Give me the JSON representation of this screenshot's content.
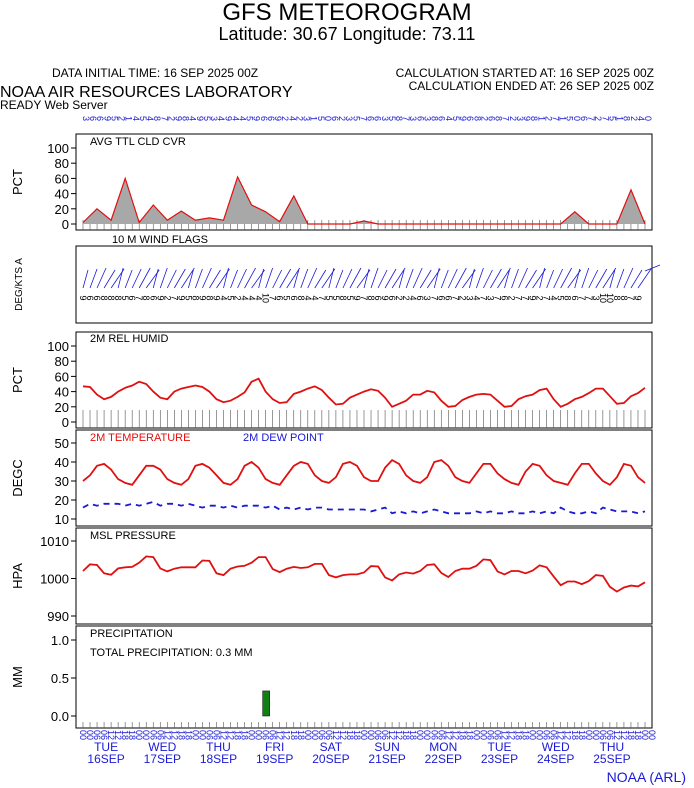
{
  "header": {
    "title": "GFS METEOROGRAM",
    "subtitle": "Latitude: 30.67 Longitude:  73.11",
    "initial_time": "DATA INITIAL TIME: 16 SEP 2025 00Z",
    "calc_started": "CALCULATION STARTED AT: 16 SEP 2025 00Z",
    "calc_ended": "CALCULATION ENDED AT: 26 SEP 2025 00Z",
    "lab": "NOAA AIR RESOURCES LABORATORY",
    "server": "READY Web Server",
    "credit": "NOAA (ARL)"
  },
  "colors": {
    "red": "#e01010",
    "blue": "#1a1ad6",
    "green": "#108010",
    "gray": "#a8a8a8"
  },
  "chart_data": [
    {
      "type": "area",
      "label": "AVG TTL CLD CVR",
      "ylabel": "PCT",
      "ylim": [
        0,
        100
      ],
      "yticks": [
        "0",
        "20",
        "40",
        "60",
        "80",
        "100"
      ],
      "x_hours": [
        0,
        6,
        12,
        18,
        24,
        30,
        36,
        42,
        48,
        54,
        60,
        66,
        72,
        78,
        84,
        90,
        96,
        102,
        108,
        114,
        120,
        126,
        132,
        138,
        144,
        150,
        156,
        162,
        168,
        174,
        180,
        186,
        192,
        198,
        204,
        210,
        216,
        222,
        228,
        234,
        240
      ],
      "values": [
        2,
        20,
        5,
        60,
        2,
        25,
        5,
        17,
        5,
        8,
        5,
        62,
        25,
        16,
        3,
        37,
        0,
        0,
        0,
        0,
        4,
        0,
        0,
        0,
        0,
        0,
        0,
        0,
        0,
        0,
        0,
        0,
        0,
        0,
        0,
        16,
        0,
        0,
        0,
        45,
        0
      ]
    },
    {
      "type": "wind_flags",
      "label": "10 M  WIND FLAGS",
      "ylabel": "DEG/KTS  A",
      "top_labels": [
        "3",
        "6",
        "6",
        "9",
        "5",
        "2",
        "1",
        "4",
        "5",
        "4",
        "8",
        "7",
        "2",
        "9",
        "8",
        "4",
        "9",
        "5",
        "3",
        "4",
        "9",
        "4",
        "4",
        "5",
        "9",
        "6",
        "6",
        "9",
        "2",
        "4",
        "2",
        "3",
        "1",
        "5",
        "0",
        "6",
        "2",
        "3",
        "5",
        "7",
        "6",
        "6",
        "3",
        "5",
        "8",
        "7",
        "3",
        "6",
        "3",
        "8",
        "6",
        "4",
        "5",
        "9",
        "6",
        "8",
        "2",
        "6",
        "8",
        "7",
        "2",
        "3",
        "9",
        "8",
        "1",
        "2",
        "7",
        "1",
        "5",
        "0",
        "6",
        "7",
        "2",
        "7",
        "5",
        "1",
        "8",
        "2",
        "4",
        "0"
      ],
      "speed_labels": [
        "9",
        "6",
        "6",
        "8",
        "8",
        "8",
        "5",
        "6",
        "7",
        "8",
        "6",
        "9",
        "2",
        "7",
        "9",
        "5",
        "8",
        "9",
        "8",
        "9",
        "4",
        "5",
        "2",
        "4",
        "4",
        "4",
        "10",
        "7",
        "6",
        "5",
        "6",
        "8",
        "4",
        "4",
        "7",
        "5",
        "5",
        "8",
        "5",
        "9",
        "7",
        "8",
        "6",
        "9",
        "6",
        "2",
        "2",
        "4",
        "6",
        "3",
        "7",
        "6",
        "6",
        "7",
        "2",
        "3",
        "4",
        "7",
        "3",
        "7",
        "6",
        "2",
        "7",
        "7",
        "9",
        "2",
        "7",
        "4",
        "5",
        "8",
        "6",
        "7",
        "7",
        "3",
        "10",
        "10",
        "8",
        "8",
        "7",
        "9"
      ]
    },
    {
      "type": "line",
      "label": "2M REL HUMID",
      "ylabel": "PCT",
      "ylim": [
        0,
        100
      ],
      "yticks": [
        "0",
        "20",
        "40",
        "60",
        "80",
        "100"
      ],
      "x_hours": [
        0,
        3,
        6,
        9,
        12,
        15,
        18,
        21,
        24,
        27,
        30,
        33,
        36,
        39,
        42,
        45,
        48,
        51,
        54,
        57,
        60,
        63,
        66,
        69,
        72,
        75,
        78,
        81,
        84,
        87,
        90,
        93,
        96,
        99,
        102,
        105,
        108,
        111,
        114,
        117,
        120,
        123,
        126,
        129,
        132,
        135,
        138,
        141,
        144,
        147,
        150,
        153,
        156,
        159,
        162,
        165,
        168,
        171,
        174,
        177,
        180,
        183,
        186,
        189,
        192,
        195,
        198,
        201,
        204,
        207,
        210,
        213,
        216,
        219,
        222,
        225,
        228,
        231,
        234,
        237,
        240
      ],
      "values": [
        47,
        46,
        36,
        30,
        33,
        40,
        45,
        48,
        53,
        50,
        40,
        32,
        30,
        40,
        44,
        46,
        48,
        46,
        40,
        30,
        26,
        28,
        33,
        39,
        53,
        57,
        40,
        30,
        25,
        26,
        37,
        40,
        44,
        47,
        42,
        32,
        23,
        24,
        32,
        36,
        40,
        43,
        41,
        32,
        20,
        24,
        28,
        36,
        36,
        41,
        39,
        28,
        20,
        21,
        29,
        33,
        36,
        37,
        36,
        28,
        20,
        21,
        30,
        34,
        36,
        42,
        44,
        30,
        20,
        24,
        30,
        33,
        38,
        44,
        44,
        34,
        24,
        25,
        34,
        38,
        45
      ]
    },
    {
      "type": "line",
      "label": "2M TEMPERATURE",
      "label2": "2M   DEW POINT",
      "ylabel": "DEGC",
      "ylim": [
        10,
        50
      ],
      "yticks": [
        "10",
        "20",
        "30",
        "40",
        "50"
      ],
      "x_hours": [
        0,
        3,
        6,
        9,
        12,
        15,
        18,
        21,
        24,
        27,
        30,
        33,
        36,
        39,
        42,
        45,
        48,
        51,
        54,
        57,
        60,
        63,
        66,
        69,
        72,
        75,
        78,
        81,
        84,
        87,
        90,
        93,
        96,
        99,
        102,
        105,
        108,
        111,
        114,
        117,
        120,
        123,
        126,
        129,
        132,
        135,
        138,
        141,
        144,
        147,
        150,
        153,
        156,
        159,
        162,
        165,
        168,
        171,
        174,
        177,
        180,
        183,
        186,
        189,
        192,
        195,
        198,
        201,
        204,
        207,
        210,
        213,
        216,
        219,
        222,
        225,
        228,
        231,
        234,
        237,
        240
      ],
      "series": [
        {
          "name": "2M TEMPERATURE",
          "values": [
            30,
            33,
            38,
            39,
            36,
            31,
            29,
            28,
            33,
            38,
            38,
            36,
            31,
            29,
            28,
            31,
            38,
            39,
            37,
            33,
            29,
            28,
            31,
            38,
            40,
            37,
            31,
            29,
            28,
            33,
            38,
            40,
            39,
            33,
            30,
            29,
            32,
            39,
            40,
            38,
            32,
            30,
            30,
            37,
            41,
            39,
            33,
            30,
            29,
            32,
            40,
            41,
            38,
            32,
            30,
            29,
            34,
            39,
            39,
            34,
            31,
            29,
            28,
            35,
            39,
            38,
            33,
            30,
            29,
            28,
            34,
            39,
            39,
            34,
            30,
            28,
            32,
            39,
            38,
            32,
            29
          ]
        },
        {
          "name": "2M   DEW POINT",
          "values": [
            16,
            18,
            17,
            18,
            18,
            18,
            17,
            18,
            17,
            18,
            19,
            17,
            18,
            18,
            17,
            18,
            17,
            16,
            17,
            17,
            16,
            17,
            16,
            17,
            17,
            17,
            16,
            17,
            15,
            16,
            15,
            16,
            15,
            16,
            16,
            15,
            15,
            15,
            15,
            15,
            15,
            14,
            15,
            16,
            13,
            14,
            13,
            14,
            13,
            14,
            15,
            14,
            13,
            13,
            13,
            13,
            14,
            13,
            14,
            13,
            13,
            14,
            13,
            13,
            14,
            13,
            14,
            13,
            16,
            14,
            13,
            13,
            14,
            13,
            16,
            15,
            14,
            14,
            14,
            13,
            14
          ]
        }
      ]
    },
    {
      "type": "line",
      "label": "MSL PRESSURE",
      "ylabel": "HPA",
      "ylim": [
        990,
        1010
      ],
      "yticks": [
        "990",
        "1000",
        "1010"
      ],
      "x_hours": [
        0,
        3,
        6,
        9,
        12,
        15,
        18,
        21,
        24,
        27,
        30,
        33,
        36,
        39,
        42,
        45,
        48,
        51,
        54,
        57,
        60,
        63,
        66,
        69,
        72,
        75,
        78,
        81,
        84,
        87,
        90,
        93,
        96,
        99,
        102,
        105,
        108,
        111,
        114,
        117,
        120,
        123,
        126,
        129,
        132,
        135,
        138,
        141,
        144,
        147,
        150,
        153,
        156,
        159,
        162,
        165,
        168,
        171,
        174,
        177,
        180,
        183,
        186,
        189,
        192,
        195,
        198,
        201,
        204,
        207,
        210,
        213,
        216,
        219,
        222,
        225,
        228,
        231,
        234,
        237,
        240
      ],
      "values": [
        1002.0,
        1003.8,
        1003.6,
        1001.4,
        1001.0,
        1002.7,
        1003.0,
        1003.1,
        1004.2,
        1005.9,
        1005.7,
        1002.7,
        1001.9,
        1002.6,
        1003.0,
        1003.0,
        1003.0,
        1004.8,
        1004.7,
        1001.4,
        1000.9,
        1002.6,
        1003.2,
        1003.4,
        1004.2,
        1005.7,
        1005.7,
        1002.5,
        1001.7,
        1002.6,
        1003.1,
        1002.8,
        1003.0,
        1003.9,
        1003.9,
        1000.9,
        1000.3,
        1000.9,
        1001.1,
        1001.1,
        1001.6,
        1003.3,
        1003.2,
        1000.3,
        999.5,
        1001.1,
        1001.6,
        1001.3,
        1002.0,
        1003.6,
        1003.8,
        1001.5,
        1000.4,
        1002.0,
        1002.6,
        1002.6,
        1003.4,
        1005.1,
        1004.9,
        1001.9,
        1001.1,
        1002.0,
        1002.0,
        1001.4,
        1002.1,
        1003.5,
        1003.0,
        1000.5,
        998.2,
        999.2,
        999.2,
        998.5,
        999.3,
        1000.9,
        1000.7,
        997.8,
        996.5,
        997.6,
        998.1,
        997.9,
        999.0
      ]
    },
    {
      "type": "bar",
      "label": "PRECIPITATION",
      "total_label": "TOTAL PRECIPITATION:   0.3 MM",
      "ylabel": "MM",
      "ylim": [
        0,
        1
      ],
      "yticks": [
        "0.0",
        "0.5",
        "1.0"
      ],
      "x_hours": [
        78
      ],
      "values": [
        0.33
      ]
    }
  ],
  "x_axis": {
    "hour_labels": [
      "00",
      "06",
      "12",
      "18",
      "00",
      "06",
      "12",
      "18",
      "00",
      "06",
      "12",
      "18",
      "00",
      "06",
      "12",
      "18",
      "00",
      "06",
      "12",
      "18",
      "00",
      "06",
      "12",
      "18",
      "00",
      "06",
      "12",
      "18",
      "00",
      "06",
      "12",
      "18",
      "00",
      "06",
      "12",
      "18",
      "00",
      "06",
      "12",
      "18",
      "00"
    ],
    "days": [
      {
        "dow": "TUE",
        "date": "16SEP"
      },
      {
        "dow": "WED",
        "date": "17SEP"
      },
      {
        "dow": "THU",
        "date": "18SEP"
      },
      {
        "dow": "FRI",
        "date": "19SEP"
      },
      {
        "dow": "SAT",
        "date": "20SEP"
      },
      {
        "dow": "SUN",
        "date": "21SEP"
      },
      {
        "dow": "MON",
        "date": "22SEP"
      },
      {
        "dow": "TUE",
        "date": "23SEP"
      },
      {
        "dow": "WED",
        "date": "24SEP"
      },
      {
        "dow": "THU",
        "date": "25SEP"
      }
    ]
  }
}
